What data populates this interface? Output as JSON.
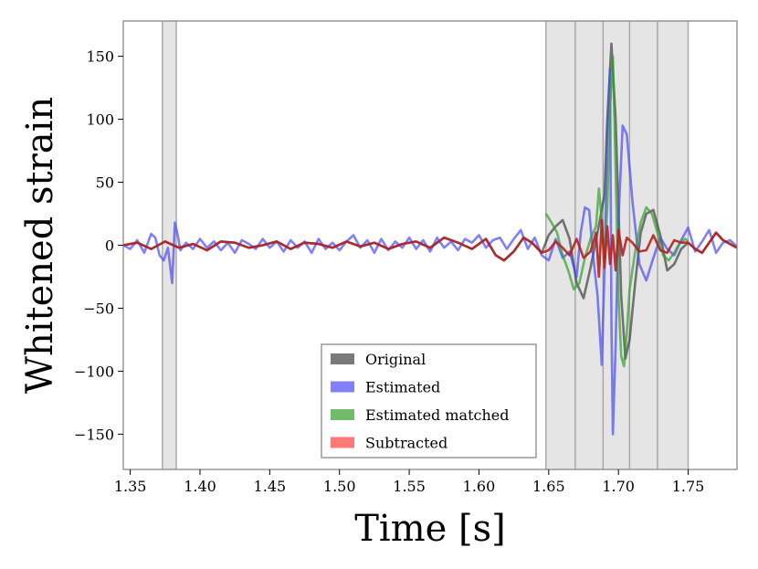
{
  "chart_data": {
    "type": "line",
    "title": "",
    "xlabel": "Time [s]",
    "ylabel": "Whitened strain",
    "xlim": [
      1.345,
      1.785
    ],
    "ylim": [
      -178,
      178
    ],
    "x_ticks": [
      1.35,
      1.4,
      1.45,
      1.5,
      1.55,
      1.6,
      1.65,
      1.7,
      1.75
    ],
    "x_tick_labels": [
      "1.35",
      "1.40",
      "1.45",
      "1.50",
      "1.55",
      "1.60",
      "1.65",
      "1.70",
      "1.75"
    ],
    "y_ticks": [
      150,
      100,
      50,
      0,
      -50,
      -100,
      -150
    ],
    "y_tick_labels": [
      "150",
      "100",
      "50",
      "0",
      "−50",
      "−100",
      "−150"
    ],
    "grid": false,
    "legend_position": "lower-center",
    "shaded_regions": [
      [
        1.373,
        1.383
      ],
      [
        1.648,
        1.669
      ],
      [
        1.669,
        1.689
      ],
      [
        1.689,
        1.708
      ],
      [
        1.708,
        1.728
      ],
      [
        1.728,
        1.75
      ]
    ],
    "series": [
      {
        "name": "Original",
        "color": "#333333",
        "opacity": 0.65,
        "x": [
          1.345,
          1.355,
          1.365,
          1.375,
          1.385,
          1.395,
          1.405,
          1.415,
          1.425,
          1.435,
          1.445,
          1.455,
          1.465,
          1.475,
          1.485,
          1.495,
          1.505,
          1.515,
          1.525,
          1.535,
          1.545,
          1.555,
          1.565,
          1.575,
          1.585,
          1.595,
          1.605,
          1.612,
          1.618,
          1.625,
          1.632,
          1.638,
          1.645,
          1.65,
          1.655,
          1.66,
          1.665,
          1.67,
          1.675,
          1.68,
          1.685,
          1.69,
          1.692,
          1.695,
          1.698,
          1.7,
          1.702,
          1.705,
          1.708,
          1.712,
          1.716,
          1.72,
          1.725,
          1.73,
          1.735,
          1.74,
          1.745,
          1.75,
          1.755,
          1.76,
          1.765,
          1.77,
          1.775,
          1.785
        ],
        "y": [
          0,
          2,
          -3,
          3,
          -2,
          1,
          -4,
          3,
          2,
          -2,
          0,
          3,
          -3,
          2,
          1,
          -2,
          3,
          -1,
          2,
          -3,
          1,
          3,
          -2,
          6,
          2,
          -3,
          5,
          -8,
          -12,
          -5,
          6,
          2,
          -6,
          8,
          15,
          20,
          5,
          -30,
          -42,
          -18,
          10,
          40,
          100,
          160,
          100,
          30,
          -40,
          -90,
          -75,
          -30,
          10,
          25,
          28,
          8,
          -20,
          -15,
          -3,
          2,
          -3,
          -6,
          2,
          10,
          4,
          -2
        ]
      },
      {
        "name": "Estimated",
        "color": "#4a4af5",
        "opacity": 0.7,
        "x": [
          1.345,
          1.35,
          1.355,
          1.36,
          1.365,
          1.368,
          1.371,
          1.374,
          1.377,
          1.38,
          1.382,
          1.384,
          1.386,
          1.39,
          1.395,
          1.4,
          1.405,
          1.41,
          1.415,
          1.42,
          1.425,
          1.43,
          1.435,
          1.44,
          1.445,
          1.45,
          1.455,
          1.46,
          1.465,
          1.47,
          1.475,
          1.48,
          1.485,
          1.49,
          1.495,
          1.5,
          1.505,
          1.51,
          1.515,
          1.52,
          1.525,
          1.53,
          1.535,
          1.54,
          1.545,
          1.55,
          1.555,
          1.56,
          1.565,
          1.57,
          1.575,
          1.58,
          1.585,
          1.59,
          1.595,
          1.6,
          1.605,
          1.61,
          1.615,
          1.62,
          1.625,
          1.63,
          1.635,
          1.64,
          1.645,
          1.65,
          1.655,
          1.66,
          1.665,
          1.67,
          1.673,
          1.676,
          1.679,
          1.682,
          1.685,
          1.688,
          1.69,
          1.692,
          1.694,
          1.695,
          1.696,
          1.698,
          1.7,
          1.703,
          1.706,
          1.71,
          1.715,
          1.72,
          1.725,
          1.73,
          1.735,
          1.74,
          1.745,
          1.75,
          1.755,
          1.76,
          1.765,
          1.77,
          1.775,
          1.78,
          1.785
        ],
        "y": [
          0,
          -3,
          4,
          -6,
          9,
          6,
          -8,
          -12,
          -2,
          -30,
          18,
          8,
          -4,
          2,
          -3,
          5,
          -2,
          3,
          -4,
          2,
          -6,
          4,
          1,
          -3,
          5,
          -2,
          3,
          -5,
          4,
          -2,
          3,
          -6,
          5,
          -3,
          2,
          -4,
          3,
          8,
          -2,
          4,
          -6,
          5,
          -4,
          3,
          -2,
          6,
          -3,
          4,
          -5,
          6,
          -2,
          3,
          -4,
          5,
          2,
          8,
          -2,
          4,
          6,
          -3,
          5,
          12,
          -3,
          6,
          -8,
          -12,
          5,
          -10,
          -5,
          -25,
          10,
          30,
          28,
          -10,
          -40,
          -95,
          -20,
          90,
          140,
          -60,
          -150,
          -80,
          20,
          95,
          88,
          35,
          -15,
          -28,
          -10,
          6,
          -3,
          -8,
          4,
          14,
          -5,
          3,
          12,
          -6,
          2,
          4,
          -1
        ]
      },
      {
        "name": "Estimated matched",
        "color": "#33a02c",
        "opacity": 0.7,
        "x": [
          1.648,
          1.652,
          1.656,
          1.66,
          1.664,
          1.668,
          1.672,
          1.676,
          1.68,
          1.684,
          1.686,
          1.688,
          1.69,
          1.692,
          1.694,
          1.696,
          1.698,
          1.7,
          1.702,
          1.704,
          1.706,
          1.708,
          1.712,
          1.716,
          1.72,
          1.724,
          1.728,
          1.732,
          1.736,
          1.74,
          1.744,
          1.748,
          1.75
        ],
        "y": [
          25,
          18,
          10,
          -8,
          -20,
          -35,
          -30,
          -10,
          5,
          15,
          45,
          20,
          -15,
          30,
          110,
          150,
          60,
          -40,
          -88,
          -96,
          -70,
          -35,
          -5,
          18,
          30,
          25,
          10,
          -8,
          -12,
          -6,
          2,
          5,
          3
        ]
      },
      {
        "name": "Subtracted",
        "color": "#b22222",
        "opacity": 0.9,
        "x": [
          1.345,
          1.355,
          1.365,
          1.375,
          1.385,
          1.395,
          1.405,
          1.415,
          1.425,
          1.435,
          1.445,
          1.455,
          1.465,
          1.475,
          1.485,
          1.495,
          1.505,
          1.515,
          1.525,
          1.535,
          1.545,
          1.555,
          1.565,
          1.575,
          1.585,
          1.595,
          1.605,
          1.612,
          1.618,
          1.625,
          1.632,
          1.638,
          1.645,
          1.65,
          1.655,
          1.66,
          1.665,
          1.67,
          1.675,
          1.68,
          1.684,
          1.686,
          1.688,
          1.69,
          1.692,
          1.694,
          1.696,
          1.698,
          1.7,
          1.703,
          1.706,
          1.71,
          1.715,
          1.72,
          1.725,
          1.73,
          1.735,
          1.74,
          1.745,
          1.75,
          1.755,
          1.76,
          1.765,
          1.77,
          1.775,
          1.785
        ],
        "y": [
          0,
          2,
          -3,
          3,
          -2,
          1,
          -4,
          3,
          2,
          -2,
          0,
          3,
          -3,
          2,
          1,
          -2,
          3,
          -1,
          2,
          -3,
          1,
          3,
          -2,
          6,
          2,
          -3,
          5,
          -8,
          -12,
          -5,
          6,
          2,
          -6,
          -4,
          3,
          -2,
          -8,
          5,
          -10,
          -5,
          10,
          -25,
          20,
          -18,
          15,
          -15,
          8,
          -20,
          12,
          -8,
          6,
          2,
          -5,
          -4,
          8,
          -4,
          -6,
          4,
          2,
          2,
          -3,
          -6,
          2,
          10,
          4,
          -2
        ]
      }
    ]
  },
  "legend": {
    "items": [
      {
        "label": "Original",
        "color": "#333333",
        "opacity": 0.65
      },
      {
        "label": "Estimated",
        "color": "#4a4af5",
        "opacity": 0.7
      },
      {
        "label": "Estimated matched",
        "color": "#33a02c",
        "opacity": 0.7
      },
      {
        "label": "Subtracted",
        "color": "#ff5555",
        "opacity": 0.8
      }
    ]
  },
  "colors": {
    "shade": "#e5e5e5",
    "shade_edge": "#999999",
    "frame": "#808080"
  }
}
